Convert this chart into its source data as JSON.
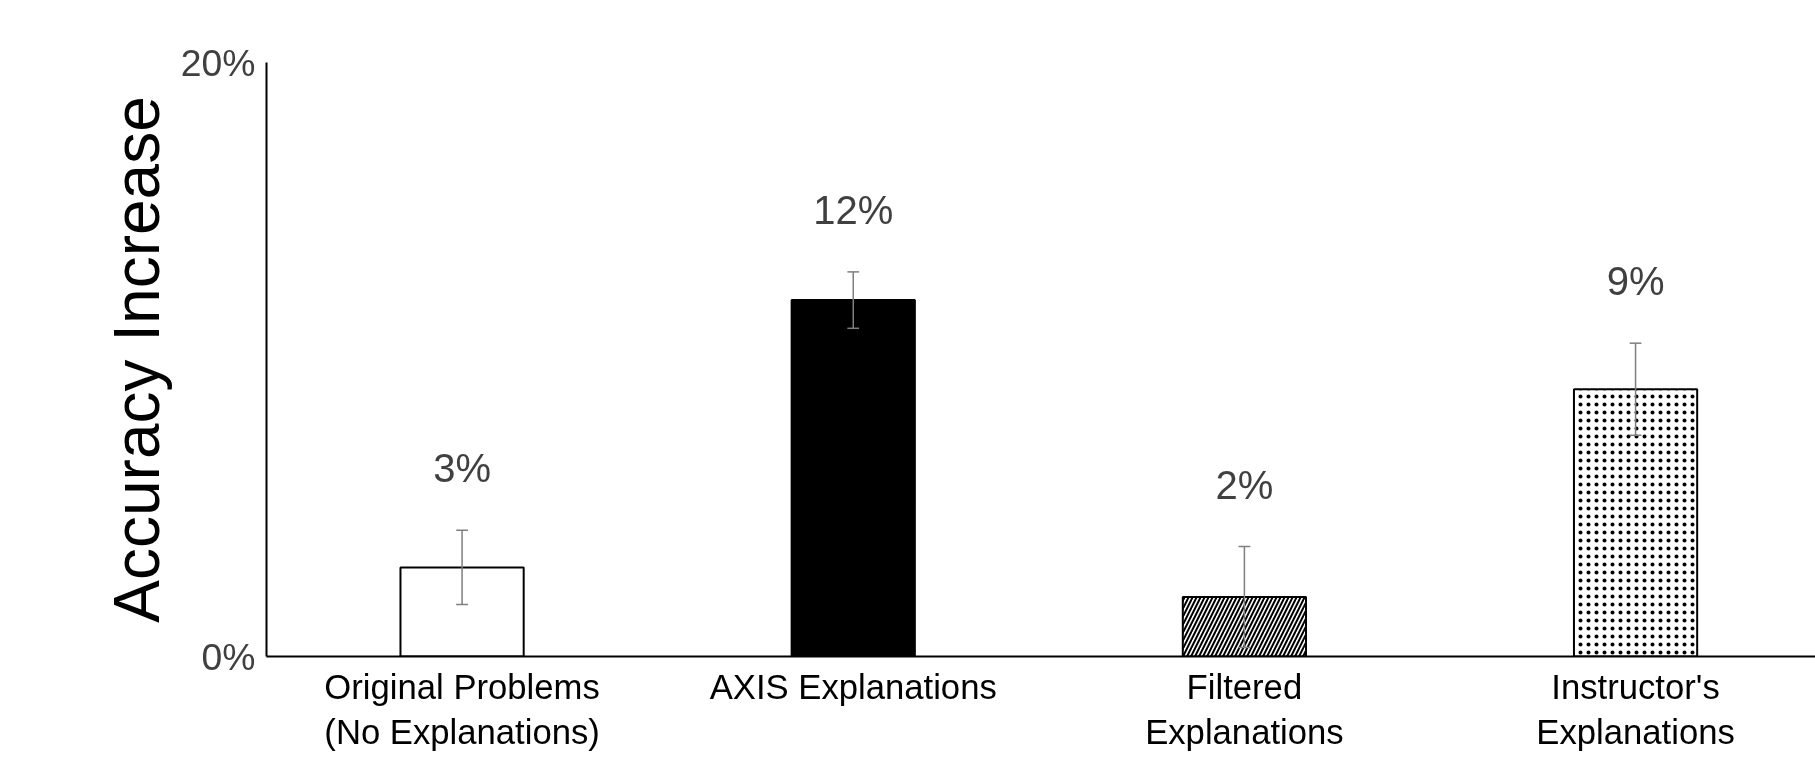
{
  "chart_data": {
    "type": "bar",
    "ylabel": "Accuracy Increase",
    "categories": [
      "Original Problems\n(No Explanations)",
      "AXIS Explanations",
      "Filtered\nExplanations",
      "Instructor's\nExplanations"
    ],
    "values": [
      3,
      12,
      2,
      9
    ],
    "colors": [
      "#ffffff",
      "#000000",
      "#ffffff",
      "#ffffff"
    ],
    "errors": [
      1.25,
      0.95,
      1.7,
      1.55
    ],
    "value_labels": [
      "3%",
      "12%",
      "2%",
      "9%"
    ],
    "ylim": [
      0,
      20
    ],
    "yticks": [
      {
        "value": 0,
        "label": "0%"
      },
      {
        "value": 20,
        "label": "20%"
      }
    ],
    "grid": false
  }
}
